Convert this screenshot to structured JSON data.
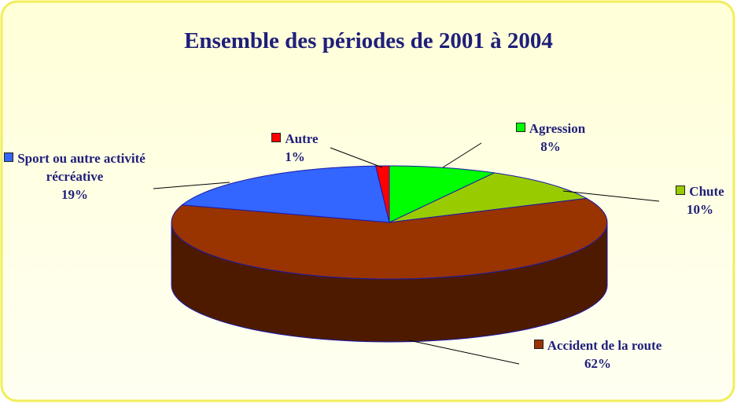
{
  "chart_data": {
    "type": "pie",
    "title": "Ensemble des périodes de 2001 à 2004",
    "categories": [
      "Agression",
      "Chute",
      "Accident de la route",
      "Sport ou autre activité récréative",
      "Autre"
    ],
    "values": [
      8,
      10,
      62,
      19,
      1
    ],
    "value_labels": [
      "8%",
      "10%",
      "62%",
      "19%",
      "1%"
    ],
    "colors": [
      "#00ff00",
      "#99cc00",
      "#993300",
      "#3366ff",
      "#ff0000"
    ]
  }
}
